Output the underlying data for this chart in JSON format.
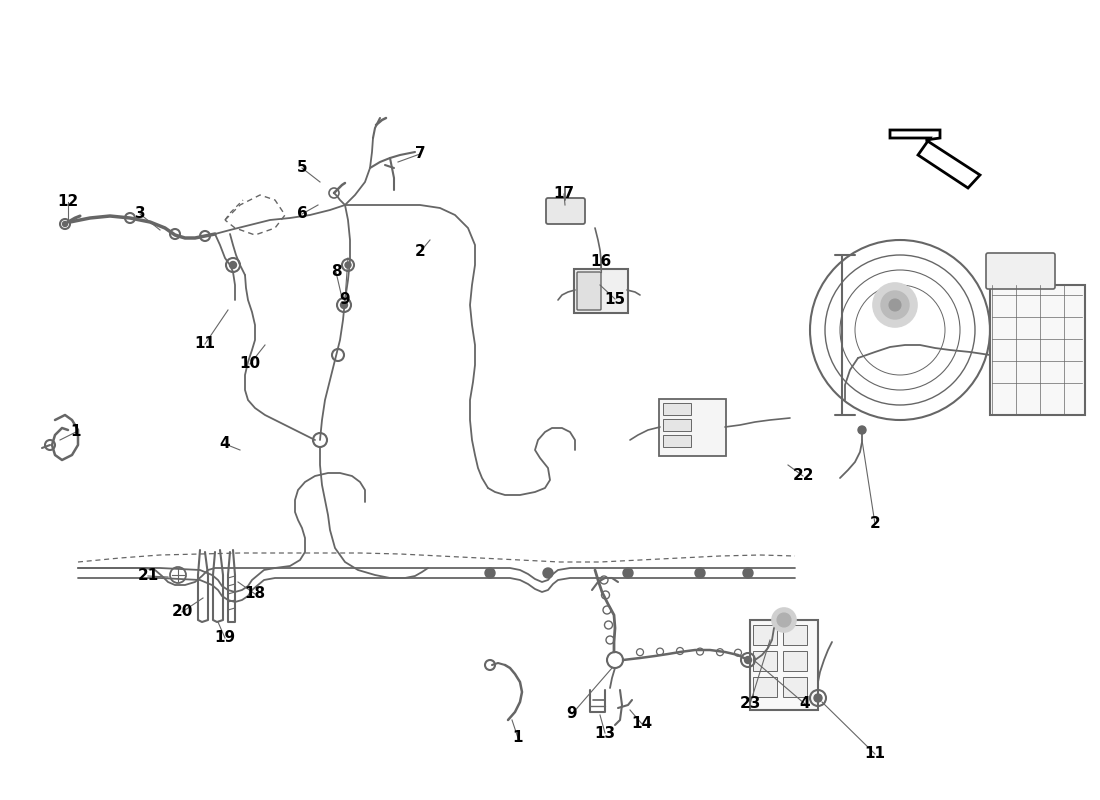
{
  "bg_color": "#ffffff",
  "line_color": "#666666",
  "label_color": "#000000",
  "label_fontsize": 11,
  "dpi": 100,
  "figw": 11.0,
  "figh": 8.0
}
